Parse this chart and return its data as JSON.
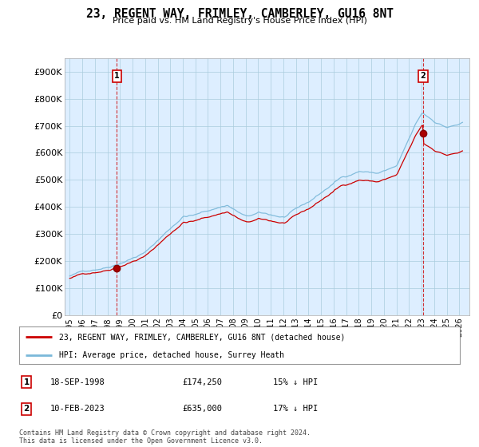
{
  "title": "23, REGENT WAY, FRIMLEY, CAMBERLEY, GU16 8NT",
  "subtitle": "Price paid vs. HM Land Registry's House Price Index (HPI)",
  "ylim": [
    0,
    950000
  ],
  "yticks": [
    0,
    100000,
    200000,
    300000,
    400000,
    500000,
    600000,
    700000,
    800000,
    900000
  ],
  "ytick_labels": [
    "£0",
    "£100K",
    "£200K",
    "£300K",
    "£400K",
    "£500K",
    "£600K",
    "£700K",
    "£800K",
    "£900K"
  ],
  "hpi_color": "#7ab8d9",
  "price_color": "#cc0000",
  "sale1_year": 1998.75,
  "sale1_price": 174250,
  "sale2_year": 2023.12,
  "sale2_price": 635000,
  "sale1_date": "18-SEP-1998",
  "sale1_price_str": "£174,250",
  "sale1_note": "15% ↓ HPI",
  "sale2_date": "10-FEB-2023",
  "sale2_price_str": "£635,000",
  "sale2_note": "17% ↓ HPI",
  "legend_line1": "23, REGENT WAY, FRIMLEY, CAMBERLEY, GU16 8NT (detached house)",
  "legend_line2": "HPI: Average price, detached house, Surrey Heath",
  "footnote": "Contains HM Land Registry data © Crown copyright and database right 2024.\nThis data is licensed under the Open Government Licence v3.0.",
  "chart_bg": "#ddeeff",
  "fig_bg": "#ffffff",
  "grid_color": "#aaccdd",
  "xlim_left": 1994.6,
  "xlim_right": 2026.8
}
